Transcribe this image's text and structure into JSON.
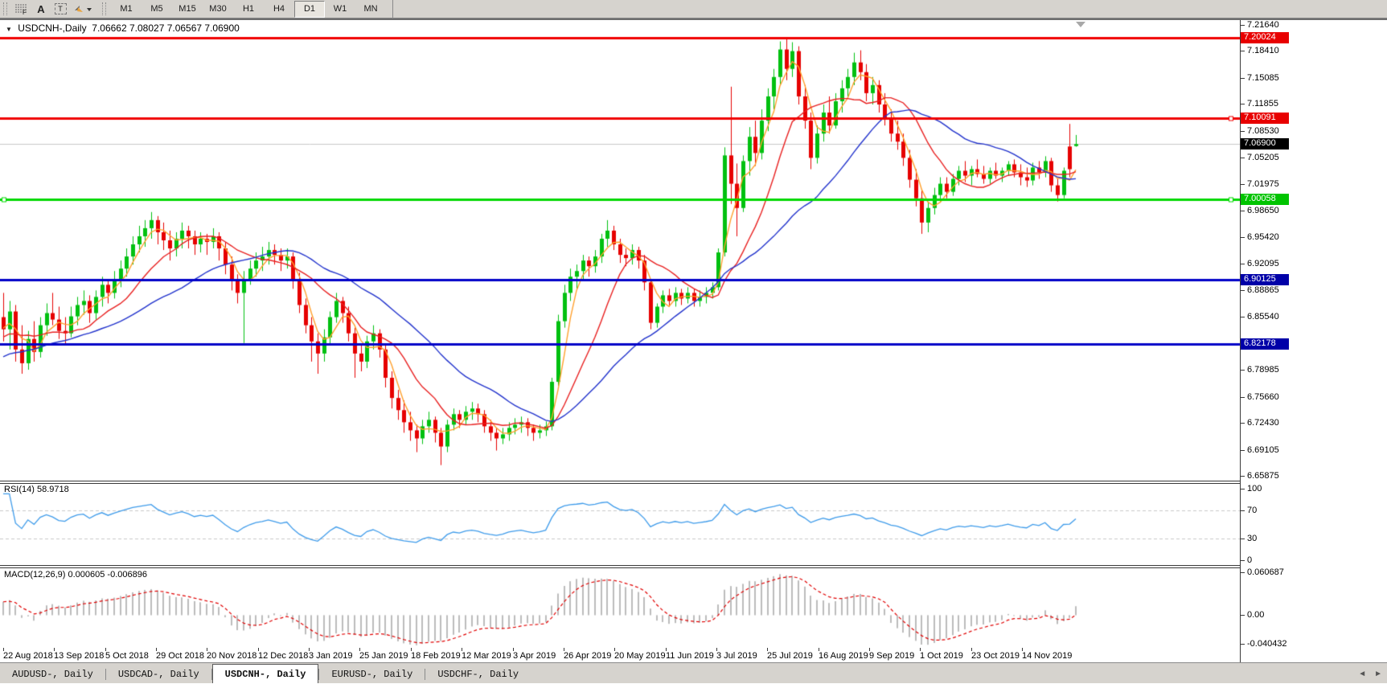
{
  "toolbar": {
    "tools": [
      "fibonacci-retracement",
      "text",
      "text-label",
      "arrows"
    ],
    "timeframes": [
      "M1",
      "M5",
      "M15",
      "M30",
      "H1",
      "H4",
      "D1",
      "W1",
      "MN"
    ],
    "active_timeframe": "D1"
  },
  "chart": {
    "symbol_title": "USDCNH-,Daily",
    "ohlc_line": "7.06662 7.08027 7.06567 7.06900"
  },
  "indicators": {
    "rsi_label": "RSI(14) 58.9718",
    "macd_label": "MACD(12,26,9) 0.000605 -0.006896"
  },
  "tabs": {
    "items": [
      {
        "label": "AUDUSD-, Daily",
        "active": false
      },
      {
        "label": "USDCAD-, Daily",
        "active": false
      },
      {
        "label": "USDCNH-, Daily",
        "active": true
      },
      {
        "label": "EURUSD-, Daily",
        "active": false
      },
      {
        "label": "USDCHF-, Daily",
        "active": false
      }
    ]
  },
  "colors": {
    "bull": "#00c010",
    "bear": "#e60000",
    "ma_fast": "#ffa02d",
    "ma_mid": "#e82020",
    "ma_slow": "#2233cc",
    "hline_red": "#f00000",
    "hline_green": "#00d800",
    "hline_blue": "#0000c8",
    "badge_red": "#e80000",
    "badge_green": "#00c400",
    "badge_blue": "#0000a8",
    "badge_black": "#000000",
    "current_price_line": "#c8c8c8",
    "rsi_line": "#3e9bea",
    "rsi_levels": "#c8c8c8",
    "macd_bar": "#bcbcbc",
    "macd_signal": "#e00000",
    "toolbar_bg": "#d6d3ce",
    "tab_bg": "#d6d3ce"
  },
  "chart_data": {
    "type": "candlestick",
    "symbol": "USDCNH-",
    "timeframe": "Daily",
    "title": "USDCNH-,Daily",
    "ohlc_current": {
      "open": 7.06662,
      "high": 7.08027,
      "low": 7.06567,
      "close": 7.069
    },
    "price_range": [
      6.65875,
      7.2164
    ],
    "price_ticks": [
      "7.21640",
      "7.18410",
      "7.15085",
      "7.11855",
      "7.08530",
      "7.05205",
      "7.01975",
      "6.98650",
      "6.95420",
      "6.92095",
      "6.88865",
      "6.85540",
      "6.78985",
      "6.75660",
      "6.72430",
      "6.69105",
      "6.65875"
    ],
    "hlines": [
      {
        "price": 7.20024,
        "label": "7.20024",
        "color_key": "red",
        "width": 3
      },
      {
        "price": 7.10091,
        "label": "7.10091",
        "color_key": "red",
        "width": 3,
        "handle_right": true
      },
      {
        "price": 7.00058,
        "label": "7.00058",
        "color_key": "green",
        "width": 3,
        "handle_left": true,
        "handle_right": true
      },
      {
        "price": 6.90125,
        "label": "6.90125",
        "color_key": "blue",
        "width": 3
      },
      {
        "price": 6.82178,
        "label": "6.82178",
        "color_key": "blue",
        "width": 3
      }
    ],
    "current_price": {
      "value": 7.069,
      "label": "7.06900"
    },
    "moving_averages": [
      {
        "period": 4,
        "color_key": "ma_fast"
      },
      {
        "period": 12,
        "color_key": "ma_mid"
      },
      {
        "period": 28,
        "color_key": "ma_slow"
      }
    ],
    "rsi": {
      "label": "RSI(14) 58.9718",
      "period": 14,
      "axis_labels": [
        "100",
        "70",
        "30",
        "0"
      ],
      "dashed_levels": [
        70,
        30
      ],
      "scale": [
        0,
        100
      ]
    },
    "macd": {
      "label": "MACD(12,26,9) 0.000605 -0.006896",
      "fast": 12,
      "slow": 26,
      "signal": 9,
      "axis_labels": [
        "0.060687",
        "0.00",
        "-0.040432"
      ],
      "range": [
        -0.040432,
        0.060687
      ]
    },
    "date_ticks": [
      "22 Aug 2018",
      "13 Sep 2018",
      "5 Oct 2018",
      "29 Oct 2018",
      "20 Nov 2018",
      "12 Dec 2018",
      "3 Jan 2019",
      "25 Jan 2019",
      "18 Feb 2019",
      "12 Mar 2019",
      "3 Apr 2019",
      "26 Apr 2019",
      "20 May 2019",
      "11 Jun 2019",
      "3 Jul 2019",
      "25 Jul 2019",
      "16 Aug 2019",
      "9 Sep 2019",
      "1 Oct 2019",
      "23 Oct 2019",
      "14 Nov 2019"
    ],
    "candles": [
      [
        6.855,
        6.885,
        6.825,
        6.84
      ],
      [
        6.84,
        6.875,
        6.815,
        6.862
      ],
      [
        6.862,
        6.87,
        6.8,
        6.815
      ],
      [
        6.815,
        6.845,
        6.785,
        6.798
      ],
      [
        6.798,
        6.838,
        6.79,
        6.828
      ],
      [
        6.828,
        6.85,
        6.8,
        6.812
      ],
      [
        6.812,
        6.855,
        6.805,
        6.845
      ],
      [
        6.845,
        6.872,
        6.832,
        6.86
      ],
      [
        6.86,
        6.885,
        6.845,
        6.852
      ],
      [
        6.852,
        6.868,
        6.828,
        6.838
      ],
      [
        6.838,
        6.855,
        6.822,
        6.835
      ],
      [
        6.835,
        6.868,
        6.83,
        6.856
      ],
      [
        6.856,
        6.88,
        6.845,
        6.87
      ],
      [
        6.87,
        6.888,
        6.858,
        6.875
      ],
      [
        6.875,
        6.882,
        6.848,
        6.86
      ],
      [
        6.86,
        6.888,
        6.852,
        6.88
      ],
      [
        6.88,
        6.905,
        6.868,
        6.895
      ],
      [
        6.895,
        6.902,
        6.872,
        6.885
      ],
      [
        6.885,
        6.912,
        6.878,
        6.9
      ],
      [
        6.9,
        6.925,
        6.892,
        6.915
      ],
      [
        6.915,
        6.94,
        6.905,
        6.93
      ],
      [
        6.93,
        6.955,
        6.92,
        6.945
      ],
      [
        6.945,
        6.968,
        6.935,
        6.955
      ],
      [
        6.955,
        6.975,
        6.942,
        6.965
      ],
      [
        6.965,
        6.985,
        6.952,
        6.975
      ],
      [
        6.975,
        6.98,
        6.945,
        6.96
      ],
      [
        6.96,
        6.972,
        6.938,
        6.95
      ],
      [
        6.95,
        6.962,
        6.925,
        6.94
      ],
      [
        6.94,
        6.96,
        6.93,
        6.952
      ],
      [
        6.952,
        6.972,
        6.94,
        6.962
      ],
      [
        6.962,
        6.968,
        6.94,
        6.955
      ],
      [
        6.955,
        6.962,
        6.932,
        6.945
      ],
      [
        6.945,
        6.96,
        6.935,
        6.952
      ],
      [
        6.952,
        6.958,
        6.932,
        6.948
      ],
      [
        6.948,
        6.965,
        6.94,
        6.955
      ],
      [
        6.955,
        6.96,
        6.925,
        6.94
      ],
      [
        6.94,
        6.948,
        6.908,
        6.92
      ],
      [
        6.92,
        6.93,
        6.888,
        6.9
      ],
      [
        6.9,
        6.908,
        6.872,
        6.885
      ],
      [
        6.885,
        6.912,
        6.823,
        6.902
      ],
      [
        6.902,
        6.925,
        6.895,
        6.915
      ],
      [
        6.915,
        6.935,
        6.905,
        6.925
      ],
      [
        6.925,
        6.942,
        6.912,
        6.93
      ],
      [
        6.93,
        6.948,
        6.92,
        6.938
      ],
      [
        6.938,
        6.945,
        6.92,
        6.932
      ],
      [
        6.932,
        6.94,
        6.912,
        6.925
      ],
      [
        6.925,
        6.94,
        6.915,
        6.93
      ],
      [
        6.93,
        6.935,
        6.89,
        6.9
      ],
      [
        6.9,
        6.91,
        6.86,
        6.87
      ],
      [
        6.87,
        6.878,
        6.835,
        6.845
      ],
      [
        6.845,
        6.855,
        6.8,
        6.825
      ],
      [
        6.825,
        6.835,
        6.785,
        6.81
      ],
      [
        6.81,
        6.84,
        6.8,
        6.83
      ],
      [
        6.83,
        6.862,
        6.822,
        6.855
      ],
      [
        6.855,
        6.885,
        6.848,
        6.875
      ],
      [
        6.875,
        6.88,
        6.848,
        6.86
      ],
      [
        6.86,
        6.868,
        6.825,
        6.835
      ],
      [
        6.835,
        6.842,
        6.78,
        6.81
      ],
      [
        6.81,
        6.822,
        6.788,
        6.8
      ],
      [
        6.8,
        6.832,
        6.792,
        6.825
      ],
      [
        6.825,
        6.845,
        6.815,
        6.835
      ],
      [
        6.835,
        6.84,
        6.805,
        6.815
      ],
      [
        6.815,
        6.82,
        6.768,
        6.78
      ],
      [
        6.78,
        6.788,
        6.742,
        6.755
      ],
      [
        6.755,
        6.765,
        6.728,
        6.74
      ],
      [
        6.74,
        6.752,
        6.712,
        6.725
      ],
      [
        6.725,
        6.738,
        6.702,
        6.715
      ],
      [
        6.715,
        6.722,
        6.688,
        6.705
      ],
      [
        6.705,
        6.728,
        6.698,
        6.72
      ],
      [
        6.72,
        6.738,
        6.712,
        6.728
      ],
      [
        6.728,
        6.732,
        6.7,
        6.712
      ],
      [
        6.712,
        6.718,
        6.672,
        6.695
      ],
      [
        6.695,
        6.728,
        6.688,
        6.722
      ],
      [
        6.722,
        6.742,
        6.715,
        6.735
      ],
      [
        6.735,
        6.74,
        6.718,
        6.728
      ],
      [
        6.728,
        6.745,
        6.722,
        6.738
      ],
      [
        6.738,
        6.75,
        6.728,
        6.742
      ],
      [
        6.742,
        6.748,
        6.725,
        6.735
      ],
      [
        6.735,
        6.74,
        6.712,
        6.72
      ],
      [
        6.72,
        6.728,
        6.702,
        6.712
      ],
      [
        6.712,
        6.718,
        6.69,
        6.705
      ],
      [
        6.705,
        6.718,
        6.698,
        6.71
      ],
      [
        6.71,
        6.725,
        6.702,
        6.718
      ],
      [
        6.718,
        6.73,
        6.71,
        6.722
      ],
      [
        6.722,
        6.732,
        6.712,
        6.725
      ],
      [
        6.725,
        6.73,
        6.708,
        6.718
      ],
      [
        6.718,
        6.722,
        6.702,
        6.712
      ],
      [
        6.712,
        6.722,
        6.705,
        6.715
      ],
      [
        6.715,
        6.726,
        6.708,
        6.72
      ],
      [
        6.72,
        6.78,
        6.715,
        6.775
      ],
      [
        6.775,
        6.858,
        6.77,
        6.85
      ],
      [
        6.85,
        6.895,
        6.842,
        6.885
      ],
      [
        6.885,
        6.915,
        6.875,
        6.905
      ],
      [
        6.905,
        6.92,
        6.89,
        6.912
      ],
      [
        6.912,
        6.932,
        6.902,
        6.925
      ],
      [
        6.925,
        6.93,
        6.905,
        6.918
      ],
      [
        6.918,
        6.938,
        6.91,
        6.93
      ],
      [
        6.93,
        6.958,
        6.922,
        6.952
      ],
      [
        6.952,
        6.975,
        6.942,
        6.962
      ],
      [
        6.962,
        6.968,
        6.938,
        6.945
      ],
      [
        6.945,
        6.952,
        6.922,
        6.932
      ],
      [
        6.932,
        6.94,
        6.918,
        6.928
      ],
      [
        6.928,
        6.945,
        6.92,
        6.938
      ],
      [
        6.938,
        6.942,
        6.915,
        6.925
      ],
      [
        6.925,
        6.932,
        6.888,
        6.898
      ],
      [
        6.898,
        6.902,
        6.84,
        6.848
      ],
      [
        6.848,
        6.872,
        6.842,
        6.868
      ],
      [
        6.868,
        6.888,
        6.86,
        6.882
      ],
      [
        6.882,
        6.89,
        6.868,
        6.875
      ],
      [
        6.875,
        6.892,
        6.868,
        6.885
      ],
      [
        6.885,
        6.89,
        6.87,
        6.878
      ],
      [
        6.878,
        6.892,
        6.872,
        6.885
      ],
      [
        6.885,
        6.89,
        6.868,
        6.875
      ],
      [
        6.875,
        6.888,
        6.868,
        6.88
      ],
      [
        6.88,
        6.892,
        6.872,
        6.885
      ],
      [
        6.885,
        6.898,
        6.878,
        6.892
      ],
      [
        6.892,
        6.94,
        6.888,
        6.935
      ],
      [
        6.935,
        7.065,
        6.93,
        7.055
      ],
      [
        7.055,
        7.14,
        6.995,
        7.02
      ],
      [
        7.02,
        7.045,
        6.955,
        6.99
      ],
      [
        6.99,
        7.055,
        6.985,
        7.048
      ],
      [
        7.048,
        7.09,
        7.03,
        7.078
      ],
      [
        7.078,
        7.098,
        7.042,
        7.058
      ],
      [
        7.058,
        7.112,
        7.05,
        7.098
      ],
      [
        7.098,
        7.138,
        7.085,
        7.128
      ],
      [
        7.128,
        7.162,
        7.112,
        7.152
      ],
      [
        7.152,
        7.196,
        7.142,
        7.186
      ],
      [
        7.186,
        7.2,
        7.148,
        7.162
      ],
      [
        7.162,
        7.195,
        7.152,
        7.184
      ],
      [
        7.184,
        7.19,
        7.118,
        7.128
      ],
      [
        7.128,
        7.142,
        7.088,
        7.098
      ],
      [
        7.098,
        7.108,
        7.038,
        7.052
      ],
      [
        7.052,
        7.092,
        7.045,
        7.082
      ],
      [
        7.082,
        7.118,
        7.072,
        7.108
      ],
      [
        7.108,
        7.128,
        7.082,
        7.092
      ],
      [
        7.092,
        7.132,
        7.088,
        7.122
      ],
      [
        7.122,
        7.148,
        7.108,
        7.138
      ],
      [
        7.138,
        7.162,
        7.128,
        7.152
      ],
      [
        7.152,
        7.182,
        7.142,
        7.17
      ],
      [
        7.17,
        7.185,
        7.148,
        7.158
      ],
      [
        7.158,
        7.168,
        7.122,
        7.132
      ],
      [
        7.132,
        7.152,
        7.118,
        7.142
      ],
      [
        7.142,
        7.148,
        7.108,
        7.118
      ],
      [
        7.118,
        7.132,
        7.092,
        7.102
      ],
      [
        7.102,
        7.112,
        7.072,
        7.082
      ],
      [
        7.082,
        7.098,
        7.062,
        7.072
      ],
      [
        7.072,
        7.082,
        7.042,
        7.052
      ],
      [
        7.052,
        7.062,
        7.015,
        7.025
      ],
      [
        7.025,
        7.038,
        6.992,
        7.002
      ],
      [
        7.002,
        7.012,
        6.958,
        6.972
      ],
      [
        6.972,
        6.998,
        6.96,
        6.99
      ],
      [
        6.99,
        7.015,
        6.982,
        7.006
      ],
      [
        7.006,
        7.028,
        6.998,
        7.02
      ],
      [
        7.02,
        7.028,
        7.002,
        7.01
      ],
      [
        7.01,
        7.032,
        7.005,
        7.026
      ],
      [
        7.026,
        7.042,
        7.018,
        7.036
      ],
      [
        7.036,
        7.048,
        7.022,
        7.03
      ],
      [
        7.03,
        7.042,
        7.018,
        7.038
      ],
      [
        7.038,
        7.05,
        7.028,
        7.032
      ],
      [
        7.032,
        7.042,
        7.02,
        7.026
      ],
      [
        7.026,
        7.04,
        7.02,
        7.036
      ],
      [
        7.036,
        7.046,
        7.026,
        7.03
      ],
      [
        7.03,
        7.04,
        7.022,
        7.036
      ],
      [
        7.036,
        7.048,
        7.03,
        7.044
      ],
      [
        7.044,
        7.05,
        7.028,
        7.034
      ],
      [
        7.034,
        7.044,
        7.018,
        7.028
      ],
      [
        7.028,
        7.04,
        7.016,
        7.024
      ],
      [
        7.024,
        7.046,
        7.018,
        7.04
      ],
      [
        7.04,
        7.048,
        7.026,
        7.034
      ],
      [
        7.034,
        7.054,
        7.028,
        7.048
      ],
      [
        7.048,
        7.052,
        7.01,
        7.018
      ],
      [
        7.018,
        7.026,
        6.998,
        7.006
      ],
      [
        7.006,
        7.04,
        7.002,
        7.036
      ],
      [
        7.066,
        7.094,
        7.028,
        7.038
      ],
      [
        7.0666,
        7.0803,
        7.0657,
        7.069
      ]
    ]
  }
}
